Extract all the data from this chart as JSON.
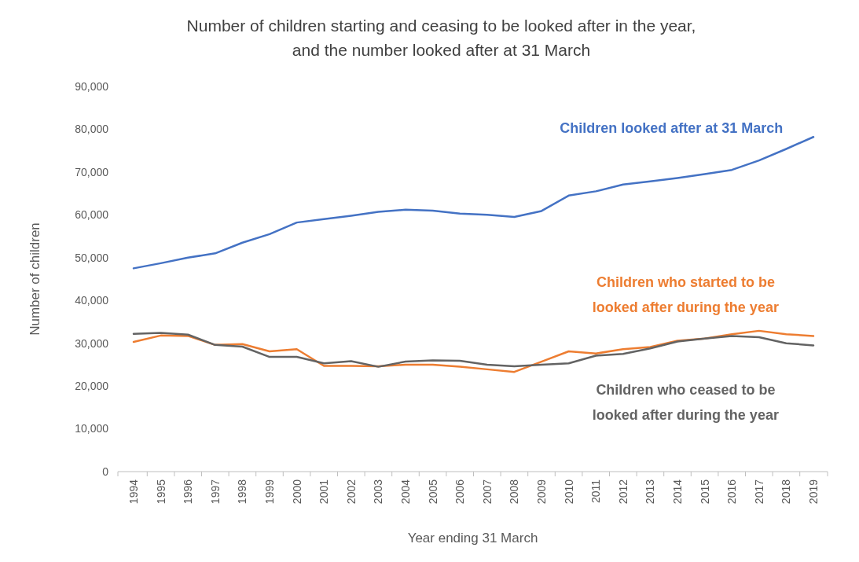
{
  "chart_data": {
    "type": "line",
    "title": "Number of children starting and ceasing to be looked after in the year, and the number looked after at 31 March",
    "xlabel": "Year ending 31 March",
    "ylabel": "Number of children",
    "categories": [
      "1994",
      "1995",
      "1996",
      "1997",
      "1998",
      "1999",
      "2000",
      "2001",
      "2002",
      "2003",
      "2004",
      "2005",
      "2006",
      "2007",
      "2008",
      "2009",
      "2010",
      "2011",
      "2012",
      "2013",
      "2014",
      "2015",
      "2016",
      "2017",
      "2018",
      "2019"
    ],
    "series": [
      {
        "name": "Children looked after at 31 March",
        "color": "#4472c4",
        "values": [
          47500,
          48700,
          50000,
          51000,
          53500,
          55500,
          58200,
          59000,
          59800,
          60700,
          61200,
          61000,
          60300,
          60000,
          59500,
          60900,
          64500,
          65500,
          67100,
          67800,
          68600,
          69500,
          70500,
          72700,
          75400,
          78200
        ]
      },
      {
        "name": "Children who started to be looked after during the year",
        "color": "#ed7d31",
        "values": [
          30300,
          31800,
          31700,
          29600,
          29800,
          28100,
          28600,
          24700,
          24700,
          24600,
          25000,
          25000,
          24500,
          23900,
          23300,
          25700,
          28100,
          27600,
          28600,
          29100,
          30600,
          31100,
          32100,
          32900,
          32100,
          31700
        ]
      },
      {
        "name": "Children who ceased to be looked after during the year",
        "color": "#636363",
        "values": [
          32200,
          32400,
          32000,
          29600,
          29200,
          26800,
          26800,
          25300,
          25800,
          24500,
          25700,
          26000,
          25900,
          25000,
          24600,
          25000,
          25300,
          27100,
          27500,
          28800,
          30400,
          31100,
          31700,
          31400,
          30000,
          29500
        ]
      }
    ],
    "ylim": [
      0,
      90000
    ],
    "yticks": [
      {
        "value": 0,
        "label": "0"
      },
      {
        "value": 10000,
        "label": "10,000"
      },
      {
        "value": 20000,
        "label": "20,000"
      },
      {
        "value": 30000,
        "label": "30,000"
      },
      {
        "value": 40000,
        "label": "40,000"
      },
      {
        "value": 50000,
        "label": "50,000"
      },
      {
        "value": 60000,
        "label": "60,000"
      },
      {
        "value": 70000,
        "label": "70,000"
      },
      {
        "value": 80000,
        "label": "80,000"
      },
      {
        "value": 90000,
        "label": "90,000"
      }
    ],
    "grid": false,
    "marker": "none",
    "line_style": "solid"
  }
}
